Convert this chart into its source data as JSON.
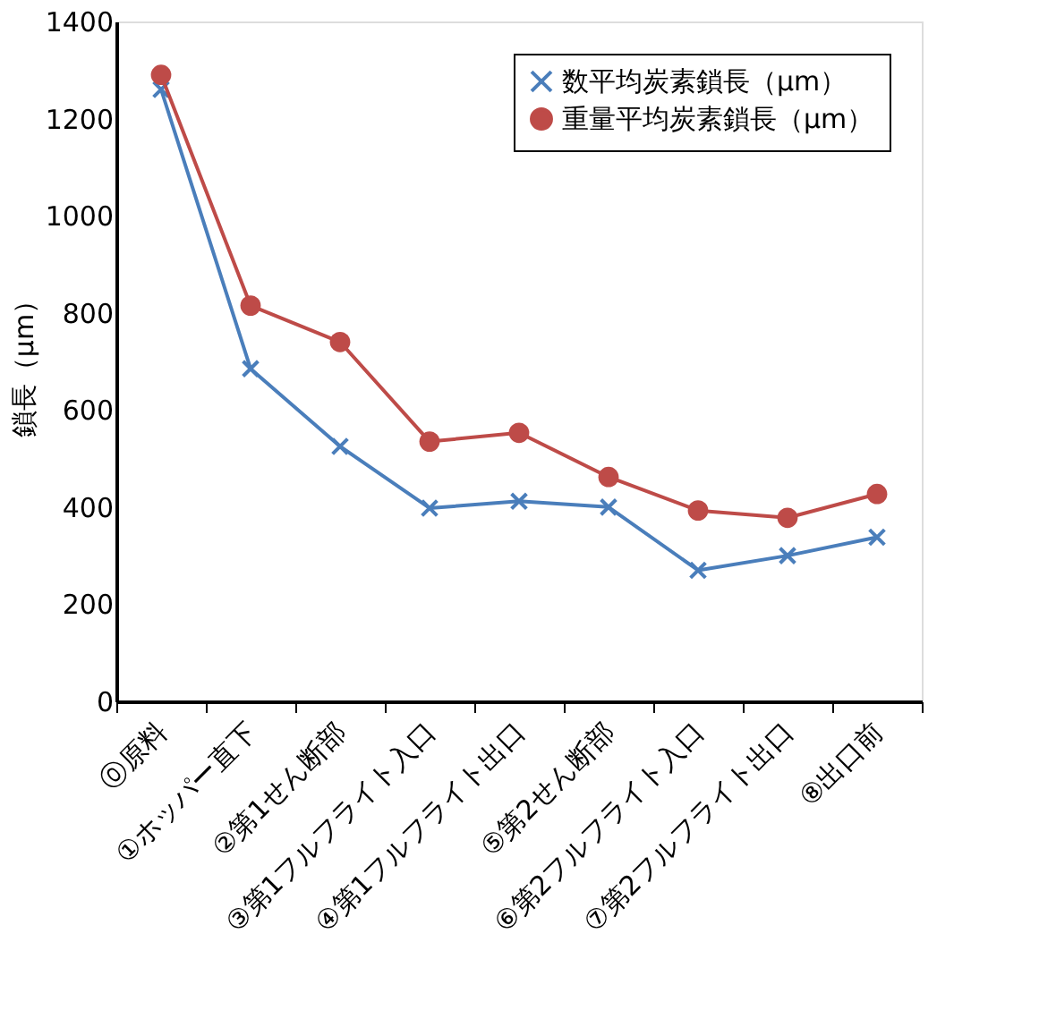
{
  "chart_data": {
    "type": "line",
    "ylabel": "鎖長（µm）",
    "categories": [
      "⓪原料",
      "①ホッパー直下",
      "②第1せん断部",
      "③第1フルフライト入口",
      "④第1フルフライト出口",
      "⑤第2せん断部",
      "⑥第2フルフライト入口",
      "⑦第2フルフライト出口",
      "⑧出口前"
    ],
    "series": [
      {
        "name": "数平均炭素鎖長（µm）",
        "color": "#4a7ebb",
        "marker": "cross",
        "values": [
          1260,
          685,
          525,
          398,
          412,
          400,
          270,
          300,
          338
        ]
      },
      {
        "name": "重量平均炭素鎖長（µm）",
        "color": "#be4b48",
        "marker": "circle",
        "values": [
          1290,
          815,
          740,
          535,
          553,
          462,
          393,
          378,
          427
        ]
      }
    ],
    "ylim": [
      0,
      1400
    ],
    "yticks": [
      0,
      200,
      400,
      600,
      800,
      1000,
      1200,
      1400
    ],
    "grid": false,
    "legend": "top right",
    "line_style": "solid"
  }
}
